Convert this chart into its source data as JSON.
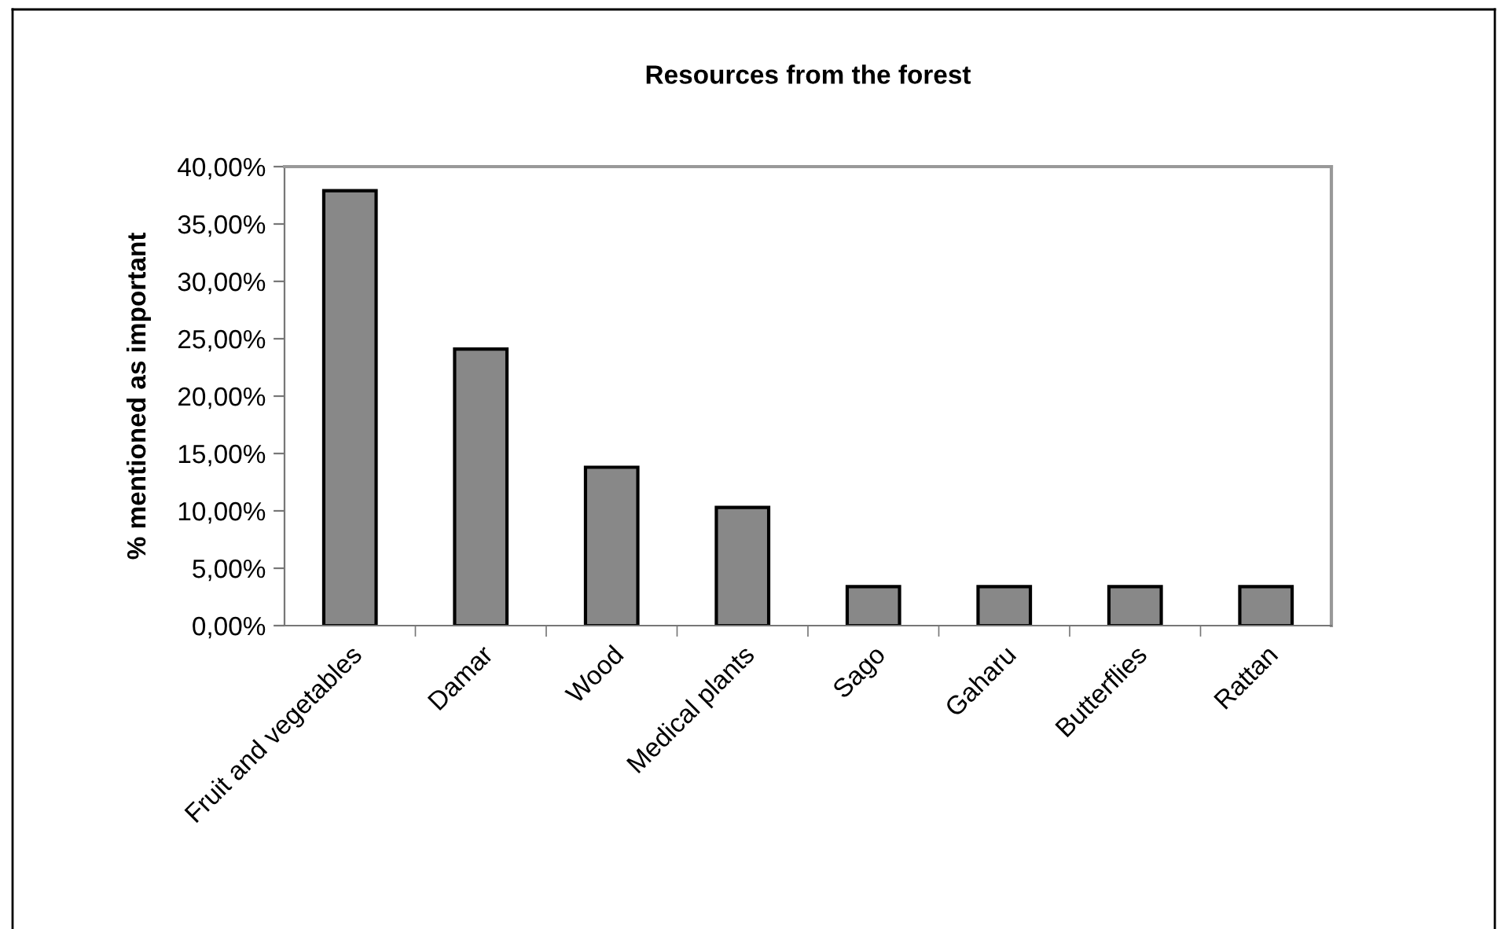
{
  "chart_data": {
    "type": "bar",
    "title": "Resources from the forest",
    "ylabel": "% mentioned as important",
    "categories": [
      "Fruit and vegetables",
      "Damar",
      "Wood",
      "Medical plants",
      "Sago",
      "Gaharu",
      "Butterflies",
      "Rattan"
    ],
    "values": [
      37.9,
      24.1,
      13.8,
      10.3,
      3.4,
      3.4,
      3.4,
      3.4
    ],
    "color": "#888888",
    "ylim": [
      0,
      40
    ],
    "yticks": [
      {
        "value": 0,
        "label": "0,00%"
      },
      {
        "value": 5,
        "label": "5,00%"
      },
      {
        "value": 10,
        "label": "10,00%"
      },
      {
        "value": 15,
        "label": "15,00%"
      },
      {
        "value": 20,
        "label": "20,00%"
      },
      {
        "value": 25,
        "label": "25,00%"
      },
      {
        "value": 30,
        "label": "30,00%"
      },
      {
        "value": 35,
        "label": "35,00%"
      },
      {
        "value": 40,
        "label": "40,00%"
      }
    ],
    "grid": false,
    "legend": false
  }
}
